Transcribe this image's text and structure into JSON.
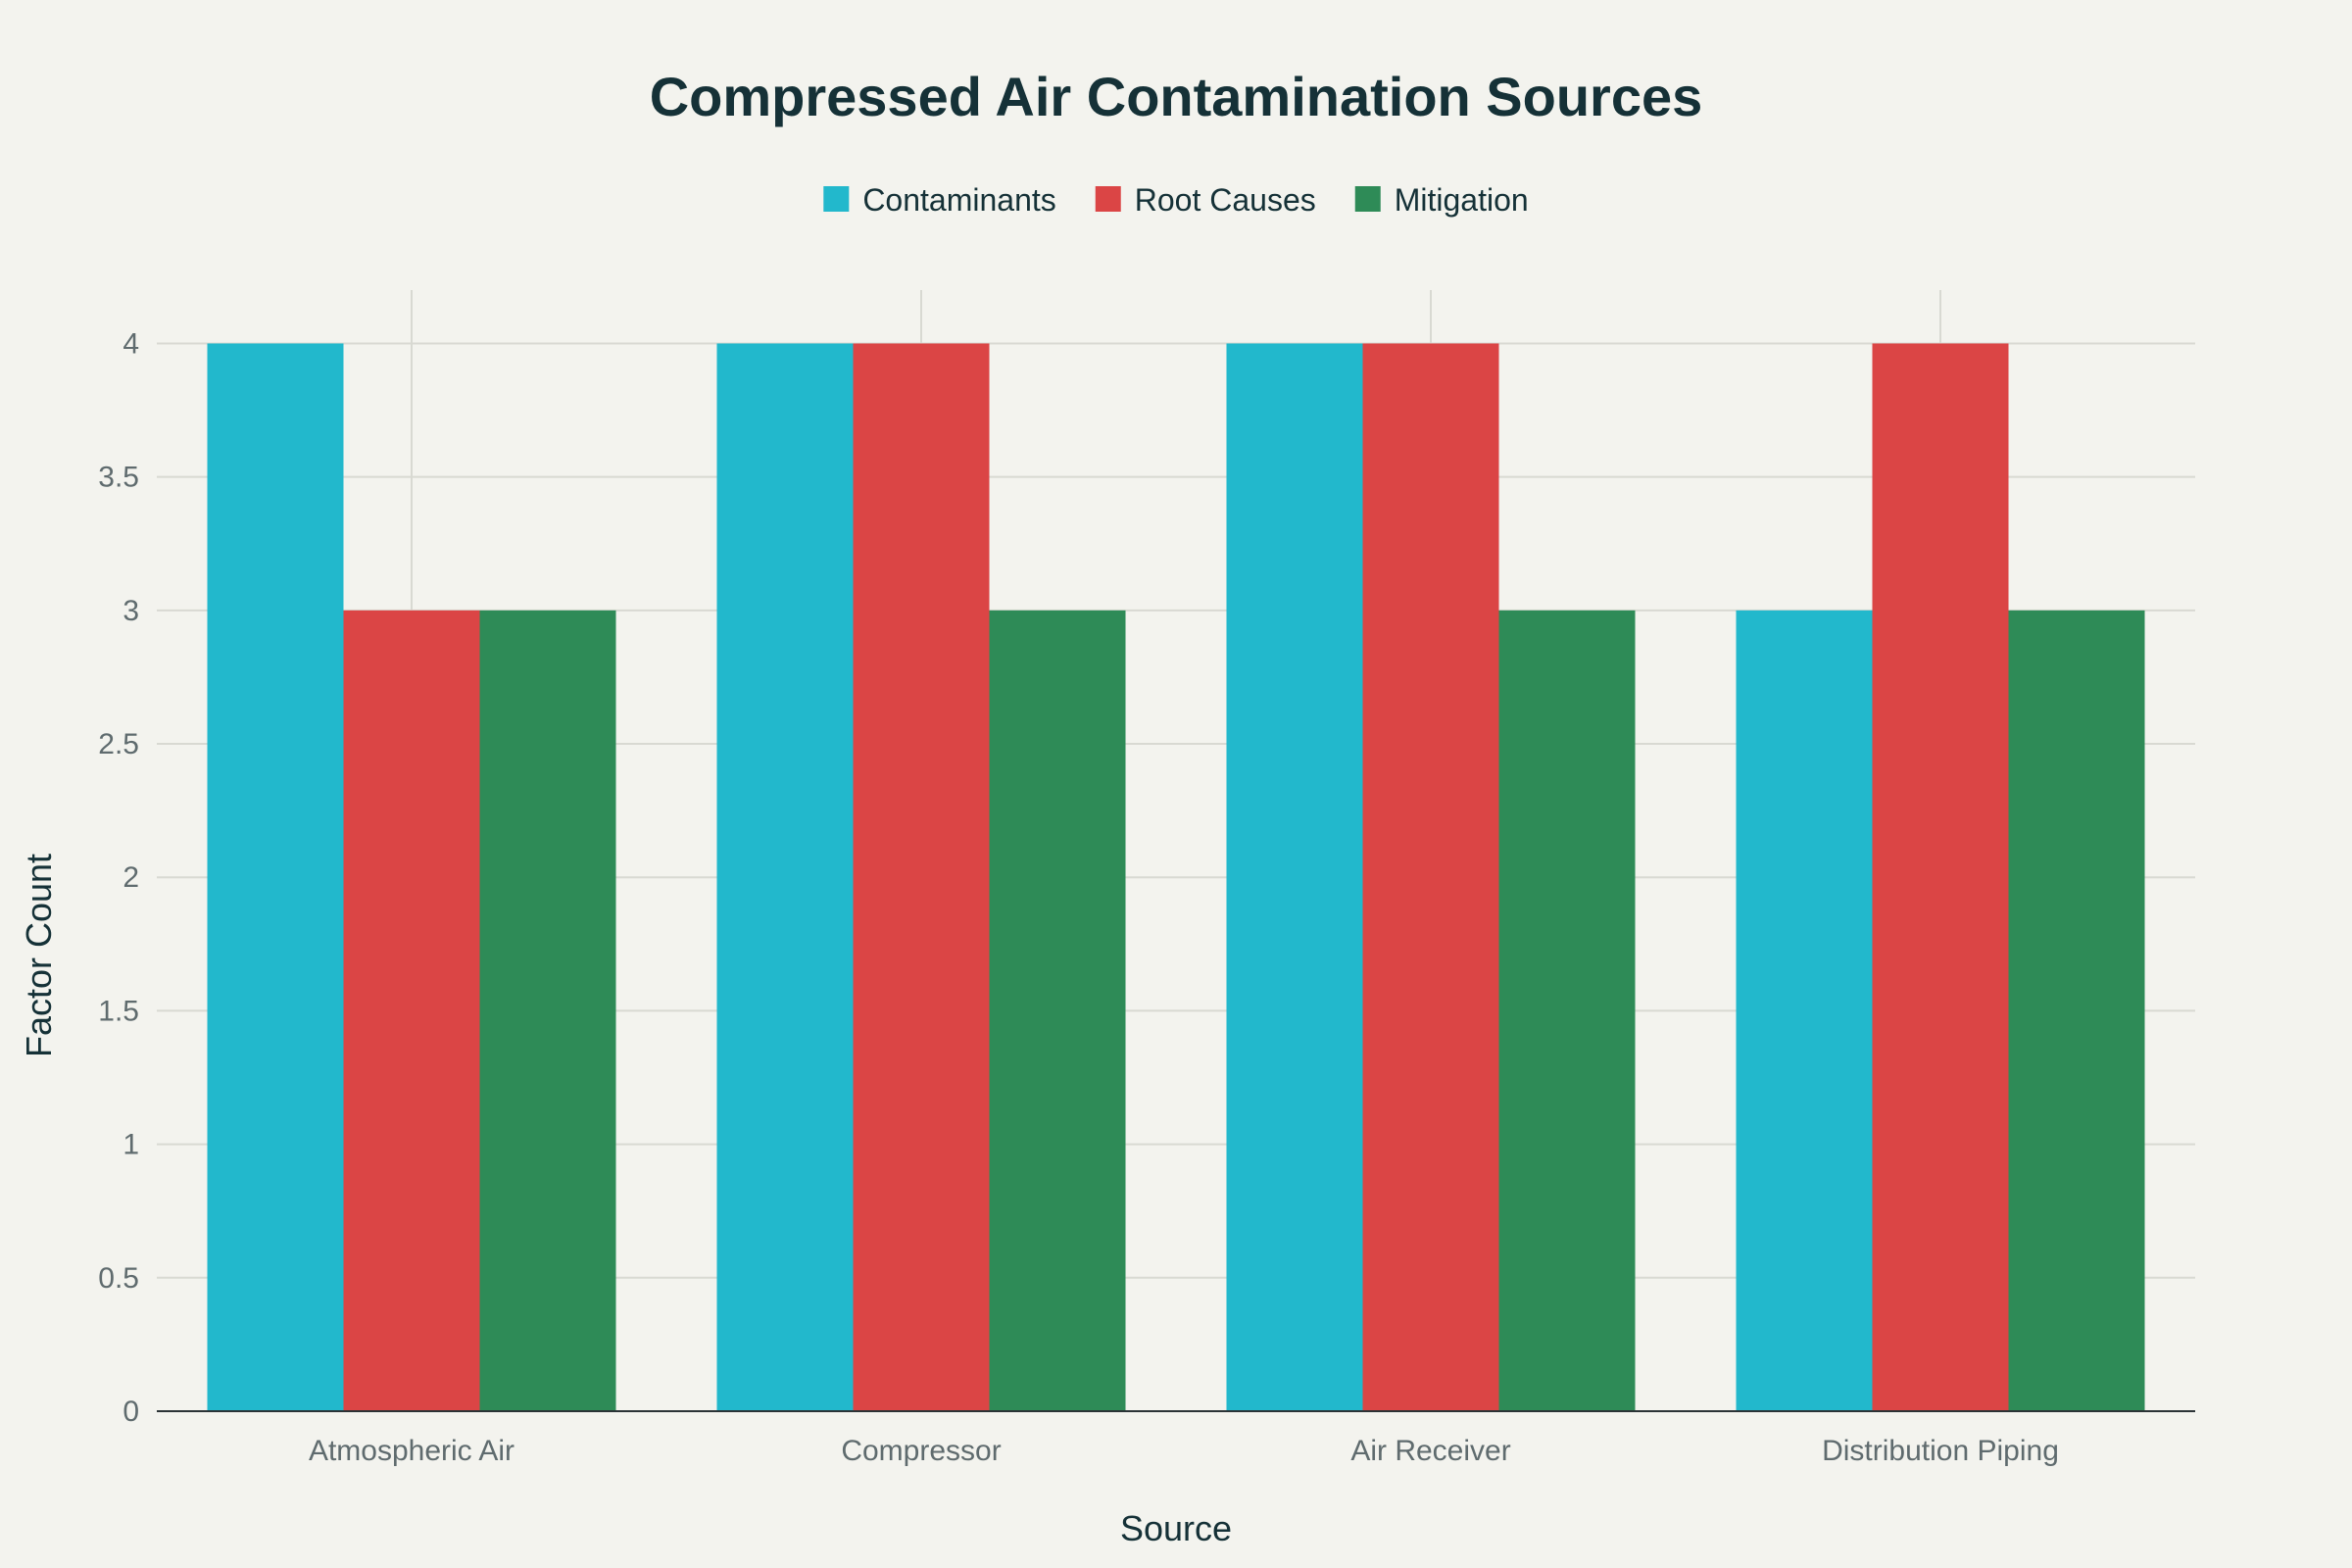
{
  "chart_data": {
    "type": "bar",
    "title": "Compressed Air Contamination Sources",
    "xlabel": "Source",
    "ylabel": "Factor Count",
    "categories": [
      "Atmospheric Air",
      "Compressor",
      "Air Receiver",
      "Distribution Piping"
    ],
    "series": [
      {
        "name": "Contaminants",
        "color": "#22b8cc",
        "values": [
          4,
          4,
          4,
          3
        ]
      },
      {
        "name": "Root Causes",
        "color": "#db4545",
        "values": [
          3,
          4,
          4,
          4
        ]
      },
      {
        "name": "Mitigation",
        "color": "#2e8b57",
        "values": [
          3,
          3,
          3,
          3
        ]
      }
    ],
    "ylim": [
      0,
      4.2
    ],
    "yticks": [
      0,
      0.5,
      1,
      1.5,
      2,
      2.5,
      3,
      3.5,
      4
    ],
    "ytick_labels": [
      "0",
      "0.5",
      "1",
      "1.5",
      "2",
      "2.5",
      "3",
      "3.5",
      "4"
    ],
    "grid": true,
    "legend_position": "top-center"
  }
}
